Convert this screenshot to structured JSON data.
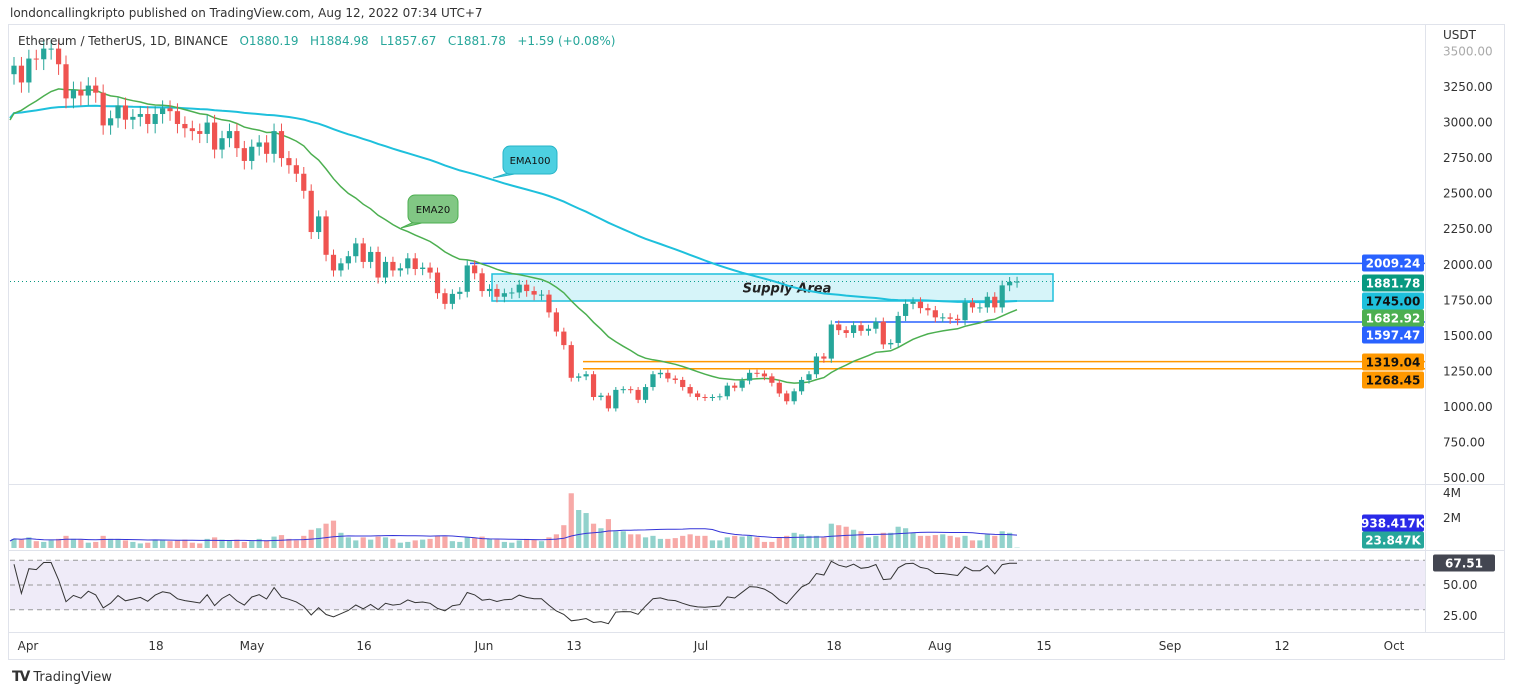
{
  "header": {
    "published": "londoncallingkripto published on TradingView.com, Aug 12, 2022 07:34 UTC+7"
  },
  "legend": {
    "symbol": "Ethereum / TetherUS, 1D, BINANCE",
    "open": "O1880.19",
    "high": "H1884.98",
    "low": "L1857.67",
    "close": "C1881.78",
    "change": "+1.59 (+0.08%)"
  },
  "footer": {
    "brand": "TradingView"
  },
  "colors": {
    "up": "#26a69a",
    "down": "#ef5350",
    "ema20": "#4caf50",
    "ema100": "#1ec0dc",
    "level_blue": "#2962ff",
    "level_orange": "#ff9800",
    "vol_ma": "#3434d8"
  },
  "chart_data": {
    "type": "candlestick",
    "start_date": "2022-03-30",
    "end_date": "2022-08-12",
    "close": [
      3400,
      3282,
      3450,
      3445,
      3520,
      3520,
      3410,
      3170,
      3230,
      3190,
      3260,
      3210,
      2980,
      3030,
      3120,
      3020,
      3040,
      3060,
      2990,
      3060,
      3100,
      3080,
      2990,
      2960,
      2940,
      2920,
      3000,
      2810,
      2890,
      2940,
      2820,
      2730,
      2830,
      2860,
      2780,
      2940,
      2750,
      2700,
      2640,
      2520,
      2230,
      2340,
      2070,
      1960,
      2010,
      2060,
      2150,
      2020,
      2090,
      1910,
      2020,
      1960,
      1975,
      2045,
      1970,
      1980,
      1945,
      1800,
      1725,
      1795,
      1810,
      1995,
      1940,
      1815,
      1830,
      1775,
      1800,
      1805,
      1860,
      1815,
      1790,
      1790,
      1665,
      1530,
      1435,
      1205,
      1215,
      1230,
      1070,
      1080,
      990,
      1120,
      1125,
      1120,
      1050,
      1140,
      1230,
      1240,
      1200,
      1190,
      1140,
      1095,
      1070,
      1065,
      1070,
      1075,
      1150,
      1135,
      1185,
      1240,
      1235,
      1215,
      1170,
      1095,
      1040,
      1110,
      1190,
      1230,
      1355,
      1340,
      1580,
      1540,
      1520,
      1575,
      1535,
      1550,
      1600,
      1440,
      1450,
      1640,
      1725,
      1740,
      1695,
      1680,
      1630,
      1630,
      1620,
      1610,
      1735,
      1700,
      1700,
      1775,
      1700,
      1855,
      1880,
      1881.78
    ],
    "volume_millions": [
      0.6,
      0.55,
      0.7,
      0.45,
      0.4,
      0.5,
      0.6,
      0.8,
      0.6,
      0.55,
      0.35,
      0.4,
      0.8,
      0.6,
      0.6,
      0.5,
      0.4,
      0.3,
      0.35,
      0.55,
      0.5,
      0.45,
      0.5,
      0.55,
      0.35,
      0.3,
      0.6,
      0.7,
      0.55,
      0.5,
      0.55,
      0.4,
      0.45,
      0.6,
      0.5,
      0.75,
      0.85,
      0.6,
      0.5,
      0.8,
      1.2,
      1.3,
      1.6,
      1.8,
      1.0,
      0.7,
      0.5,
      0.7,
      0.55,
      0.75,
      0.7,
      0.6,
      0.35,
      0.4,
      0.5,
      0.55,
      0.6,
      0.8,
      0.75,
      0.45,
      0.4,
      0.7,
      0.65,
      0.75,
      0.6,
      0.55,
      0.4,
      0.35,
      0.5,
      0.6,
      0.55,
      0.45,
      0.7,
      0.9,
      1.5,
      3.6,
      2.5,
      2.3,
      1.6,
      1.3,
      1.9,
      1.1,
      1.1,
      0.9,
      0.9,
      0.7,
      0.8,
      0.6,
      0.6,
      0.65,
      0.8,
      0.9,
      0.8,
      0.8,
      0.5,
      0.5,
      0.7,
      0.8,
      0.75,
      0.8,
      0.7,
      0.4,
      0.4,
      0.7,
      0.8,
      1.0,
      0.9,
      0.8,
      0.8,
      0.7,
      1.6,
      1.5,
      1.4,
      1.2,
      1.1,
      0.7,
      0.8,
      1.0,
      1.0,
      1.4,
      1.3,
      1.0,
      0.8,
      0.8,
      0.85,
      0.9,
      0.8,
      0.7,
      0.8,
      0.5,
      0.5,
      0.9,
      0.8,
      1.1,
      1.0,
      0.024
    ],
    "price_axis": {
      "unit": "USDT",
      "ticks": [
        "3500.00",
        "3250.00",
        "3000.00",
        "2750.00",
        "2500.00",
        "2250.00",
        "2000.00",
        "1750.00",
        "1500.00",
        "1250.00",
        "1000.00",
        "750.00",
        "500.00"
      ]
    },
    "volume_axis": {
      "ticks": [
        "4M",
        "2M"
      ]
    },
    "rsi_axis": {
      "ticks": [
        "50.00",
        "25.00"
      ]
    },
    "time_axis": [
      "Apr",
      "18",
      "May",
      "16",
      "Jun",
      "13",
      "Jul",
      "18",
      "Aug",
      "15",
      "Sep",
      "12",
      "Oct"
    ],
    "levels": [
      {
        "price": 2009.24,
        "label": "2009.24",
        "color": "#2962ff",
        "text": "#fff"
      },
      {
        "price": 1881.78,
        "label": "1881.78",
        "color": "#089981",
        "text": "#fff"
      },
      {
        "price": 1745.0,
        "label": "1745.00",
        "color": "#1ec0dc",
        "text": "#111"
      },
      {
        "price": 1682.92,
        "label": "1682.92",
        "color": "#4caf50",
        "text": "#fff"
      },
      {
        "price": 1597.47,
        "label": "1597.47",
        "color": "#2962ff",
        "text": "#fff"
      },
      {
        "price": 1319.04,
        "label": "1319.04",
        "color": "#ff9800",
        "text": "#111"
      },
      {
        "price": 1268.45,
        "label": "1268.45",
        "color": "#ff9800",
        "text": "#111"
      }
    ],
    "volume_labels": [
      {
        "label": "938.417K",
        "color": "#2a2ae8"
      },
      {
        "label": "23.847K",
        "color": "#26a69a"
      }
    ],
    "rsi_label": "67.51",
    "supply_area": {
      "label": "Supply Area",
      "top": 1935,
      "bottom": 1745
    },
    "annotations": [
      {
        "label": "EMA100"
      },
      {
        "label": "EMA20"
      }
    ]
  }
}
